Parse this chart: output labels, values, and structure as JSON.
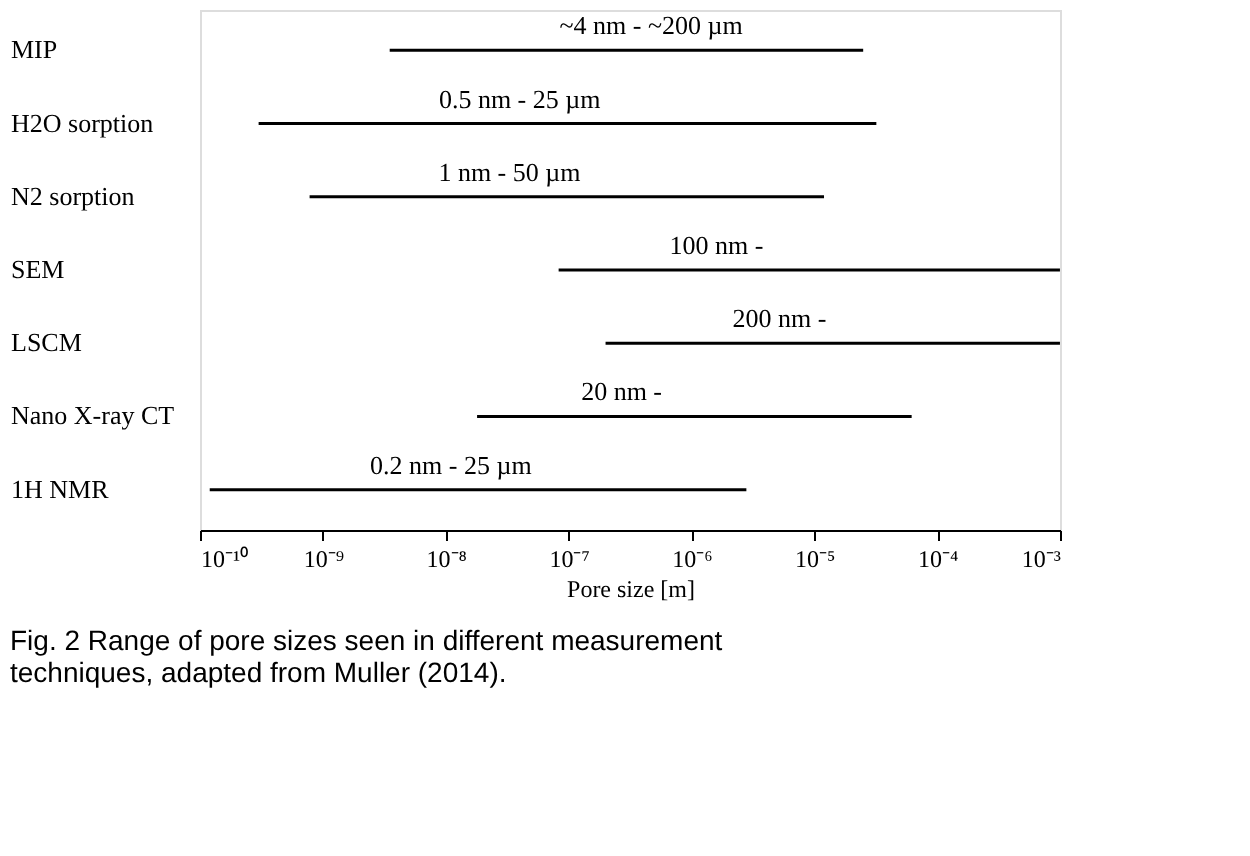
{
  "chart_data": {
    "type": "bar",
    "orientation": "horizontal",
    "log": "x",
    "grid": false,
    "categories": [
      "MIP",
      "H2O sorption",
      "N2 sorption",
      "SEM",
      "LSCM",
      "Nano X-ray CT",
      "1H NMR"
    ],
    "base": [
      3.5e-09,
      3e-10,
      7.8e-10,
      8.3e-08,
      2e-07,
      1.8e-08,
      1.2e-10
    ],
    "values": [
      2.5e-05,
      3.2e-05,
      1.2e-05,
      0.000999,
      0.000999,
      6.2e-05,
      2.8e-06
    ],
    "color": "#000000",
    "xlim": [
      1e-10,
      0.001
    ],
    "xticks": [
      {
        "value": 1e-10,
        "label": "10⁻¹⁰"
      },
      {
        "value": 1e-09,
        "label": "10⁻⁹"
      },
      {
        "value": 1e-08,
        "label": "10⁻⁸"
      },
      {
        "value": 1e-07,
        "label": "10⁻⁷"
      },
      {
        "value": 1e-06,
        "label": "10⁻⁶"
      },
      {
        "value": 1e-05,
        "label": "10⁻⁵"
      },
      {
        "value": 0.0001,
        "label": "10⁻⁴"
      },
      {
        "value": 0.001,
        "label": "10⁻³"
      }
    ],
    "xlabel": "Pore size [m]",
    "annotations": [
      {
        "text": "~4 nm - ~200 µm",
        "x": 4.7e-07,
        "y": "MIP"
      },
      {
        "text": "0.5 nm - 25 µm",
        "x": 4e-08,
        "y": "H2O sorption"
      },
      {
        "text": "1 nm - 50 µm",
        "x": 3.3e-08,
        "y": "N2 sorption"
      },
      {
        "text": "100 nm -",
        "x": 1.6e-06,
        "y": "SEM"
      },
      {
        "text": "200 nm -",
        "x": 5.2e-06,
        "y": "LSCM"
      },
      {
        "text": "20 nm -",
        "x": 2.7e-07,
        "y": "Nano X-ray CT"
      },
      {
        "text": "0.2 nm - 25 µm",
        "x": 1.1e-08,
        "y": "1H NMR"
      },
      "Fig. 2 Range of pore sizes seen in different measurement techniques, adapted from Muller (2014)."
    ]
  }
}
